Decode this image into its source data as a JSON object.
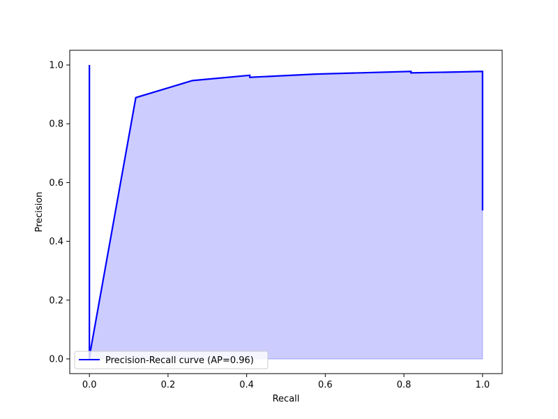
{
  "chart_data": {
    "type": "area",
    "title": "",
    "xlabel": "Recall",
    "ylabel": "Precision",
    "xlim": [
      -0.05,
      1.05
    ],
    "ylim": [
      -0.05,
      1.05
    ],
    "xticks": [
      0.0,
      0.2,
      0.4,
      0.6,
      0.8,
      1.0
    ],
    "yticks": [
      0.0,
      0.2,
      0.4,
      0.6,
      0.8,
      1.0
    ],
    "xtick_labels": [
      "0.0",
      "0.2",
      "0.4",
      "0.6",
      "0.8",
      "1.0"
    ],
    "ytick_labels": [
      "0.0",
      "0.2",
      "0.4",
      "0.6",
      "0.8",
      "1.0"
    ],
    "grid": false,
    "legend_position": "lower-left",
    "series": [
      {
        "name": "Precision-Recall curve (AP=0.96)",
        "color": "#0000ff",
        "fill_color": "#ccccff",
        "x": [
          0.0,
          0.0,
          0.003,
          0.118,
          0.262,
          0.408,
          0.408,
          0.575,
          0.818,
          0.818,
          1.0,
          1.0
        ],
        "y": [
          1.0,
          0.0,
          0.03,
          0.889,
          0.947,
          0.965,
          0.958,
          0.969,
          0.978,
          0.973,
          0.978,
          0.505
        ]
      }
    ]
  }
}
